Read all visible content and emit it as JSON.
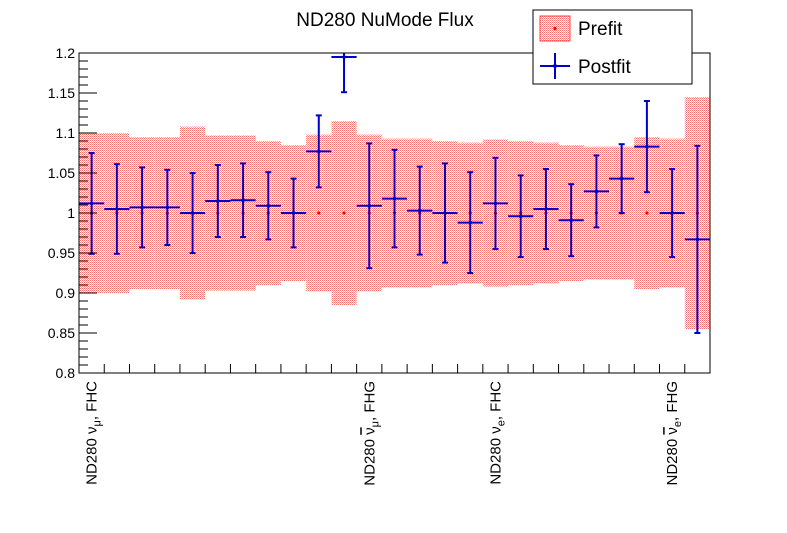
{
  "chart_data": {
    "type": "errorbar",
    "title": "ND280 NuMode Flux",
    "xlabel": "",
    "ylabel": "",
    "ylim": [
      0.8,
      1.2
    ],
    "yticks": [
      "0.8",
      "0.85",
      "0.9",
      "0.95",
      "1",
      "1.05",
      "1.1",
      "1.15",
      "1.2"
    ],
    "ytick_values": [
      0.8,
      0.85,
      0.9,
      0.95,
      1.0,
      1.05,
      1.1,
      1.15,
      1.2
    ],
    "n_bins": 25,
    "category_labels": [
      {
        "bin": 0,
        "base": "ND280 ",
        "nu": "ν",
        "bar": false,
        "sub": "μ",
        "rest": ", FHC"
      },
      {
        "bin": 11,
        "base": "ND280 ",
        "nu": "ν",
        "bar": true,
        "sub": "μ",
        "rest": ", FHG"
      },
      {
        "bin": 16,
        "base": "ND280 ",
        "nu": "ν",
        "bar": false,
        "sub": "e",
        "rest": ", FHC"
      },
      {
        "bin": 23,
        "base": "ND280 ",
        "nu": "ν",
        "bar": true,
        "sub": "e",
        "rest": ", FHG"
      }
    ],
    "series": [
      {
        "name": "Prefit",
        "color": "#ff0000",
        "values": [
          1,
          1,
          1,
          1,
          1,
          1,
          1,
          1,
          1,
          1,
          1,
          1,
          1,
          1,
          1,
          1,
          1,
          1,
          1,
          1,
          1,
          1,
          1,
          1,
          1
        ],
        "err_lo": [
          0.1,
          0.1,
          0.095,
          0.095,
          0.108,
          0.097,
          0.097,
          0.09,
          0.085,
          0.098,
          0.115,
          0.098,
          0.093,
          0.093,
          0.09,
          0.088,
          0.092,
          0.09,
          0.088,
          0.085,
          0.083,
          0.083,
          0.095,
          0.093,
          0.145
        ],
        "err_hi": [
          0.1,
          0.1,
          0.095,
          0.095,
          0.108,
          0.097,
          0.097,
          0.09,
          0.085,
          0.098,
          0.115,
          0.098,
          0.093,
          0.093,
          0.09,
          0.088,
          0.092,
          0.09,
          0.088,
          0.085,
          0.083,
          0.083,
          0.095,
          0.093,
          0.145
        ]
      },
      {
        "name": "Postfit",
        "color": "#0000cc",
        "values": [
          1.012,
          1.005,
          1.007,
          1.007,
          1.0,
          1.015,
          1.016,
          1.009,
          1.0,
          1.077,
          1.195,
          1.009,
          1.018,
          1.003,
          1.0,
          0.988,
          1.012,
          0.996,
          1.005,
          0.991,
          1.027,
          1.043,
          1.083,
          1.0,
          0.967
        ],
        "err_lo": [
          0.063,
          0.056,
          0.05,
          0.047,
          0.05,
          0.045,
          0.046,
          0.042,
          0.043,
          0.045,
          0.044,
          0.078,
          0.061,
          0.055,
          0.062,
          0.063,
          0.057,
          0.051,
          0.05,
          0.045,
          0.045,
          0.043,
          0.057,
          0.055,
          0.117
        ],
        "err_hi": [
          0.063,
          0.056,
          0.05,
          0.047,
          0.05,
          0.045,
          0.046,
          0.042,
          0.043,
          0.045,
          0.044,
          0.078,
          0.061,
          0.055,
          0.062,
          0.063,
          0.057,
          0.051,
          0.05,
          0.045,
          0.045,
          0.043,
          0.057,
          0.055,
          0.117
        ]
      }
    ],
    "legend": {
      "position": "top-right",
      "entries": [
        "Prefit",
        "Postfit"
      ]
    },
    "grid": false
  }
}
